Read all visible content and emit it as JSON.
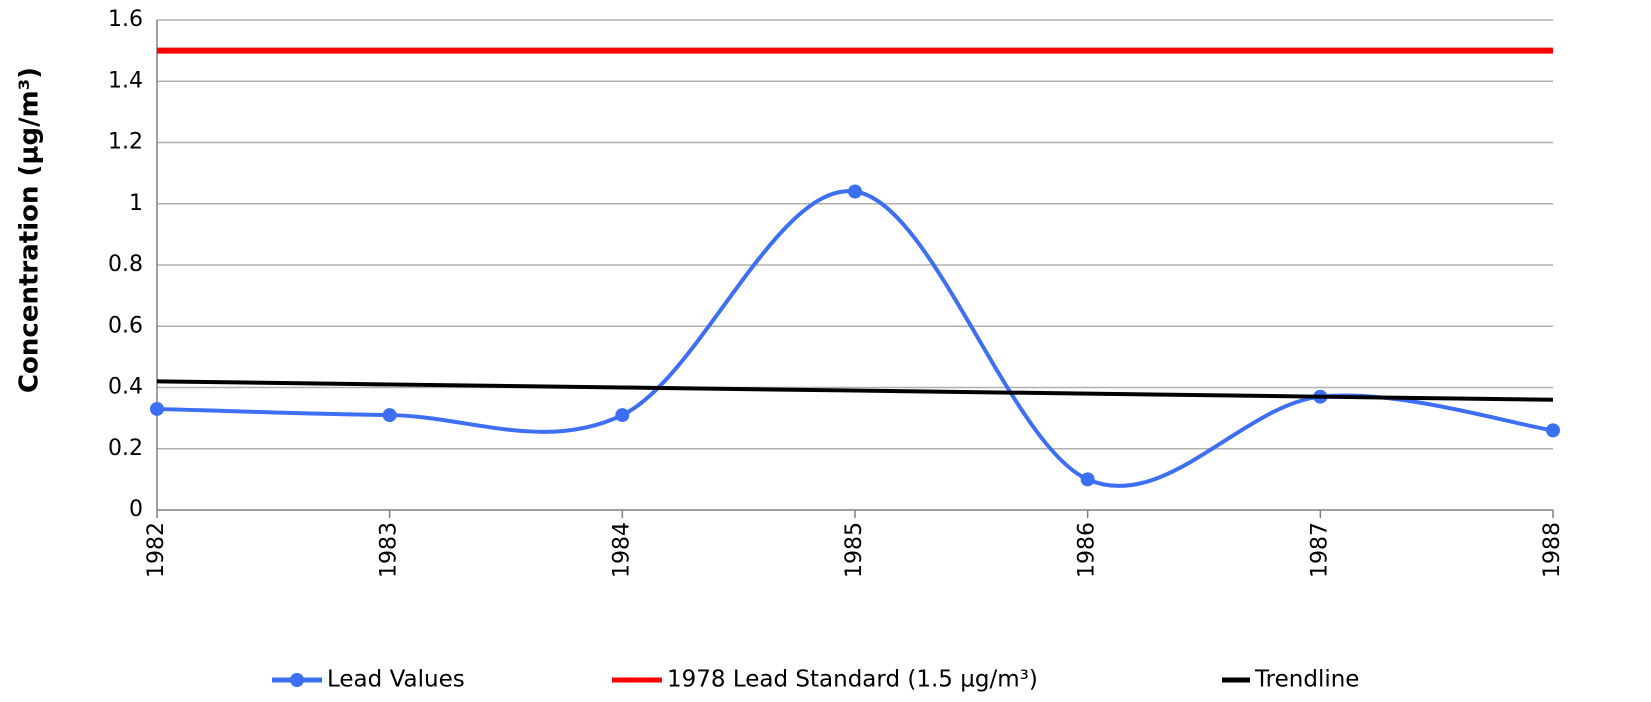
{
  "chart_data": {
    "type": "line",
    "ylabel": "Concentration (µg/m³)",
    "categories": [
      "1982",
      "1983",
      "1984",
      "1985",
      "1986",
      "1987",
      "1988"
    ],
    "series": [
      {
        "name": "Lead Values",
        "color": "#3d6ff2",
        "smooth": true,
        "markers": true,
        "values": [
          0.33,
          0.31,
          0.31,
          1.04,
          0.1,
          0.37,
          0.26
        ]
      },
      {
        "name": "1978 Lead Standard (1.5 µg/m³)",
        "color": "#ff0000",
        "smooth": false,
        "markers": false,
        "values": [
          1.5,
          1.5,
          1.5,
          1.5,
          1.5,
          1.5,
          1.5
        ]
      },
      {
        "name": "Trendline",
        "color": "#000000",
        "smooth": false,
        "markers": false,
        "values": [
          0.42,
          0.41,
          0.4,
          0.39,
          0.38,
          0.37,
          0.36
        ]
      }
    ],
    "ylim": [
      0,
      1.6
    ],
    "yticks": [
      0,
      0.2,
      0.4,
      0.6,
      0.8,
      1,
      1.2,
      1.4,
      1.6
    ],
    "grid": true,
    "legend": "bottom"
  }
}
